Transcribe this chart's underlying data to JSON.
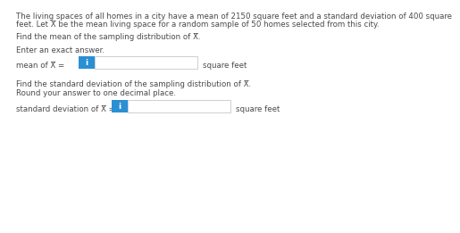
{
  "bg_color": "#ffffff",
  "text_color": "#4a4a4a",
  "blue_btn_color": "#2b8fd4",
  "box_border_color": "#c8c8c8",
  "para1_line1": "The living spaces of all homes in a city have a mean of 2150 square feet and a standard deviation of 400 square",
  "para1_line2": "feet. Let X̅ be the mean living space for a random sample of 50 homes selected from this city.",
  "line1": "Find the mean of the sampling distribution of X̅.",
  "line2": "Enter an exact answer.",
  "label1": "mean of X̅ =",
  "suffix1": "square feet",
  "line3": "Find the standard deviation of the sampling distribution of X̅.",
  "line4": "Round your answer to one decimal place.",
  "label2": "standard deviation of X̅ =",
  "suffix2": "square feet",
  "fs": 6.2
}
